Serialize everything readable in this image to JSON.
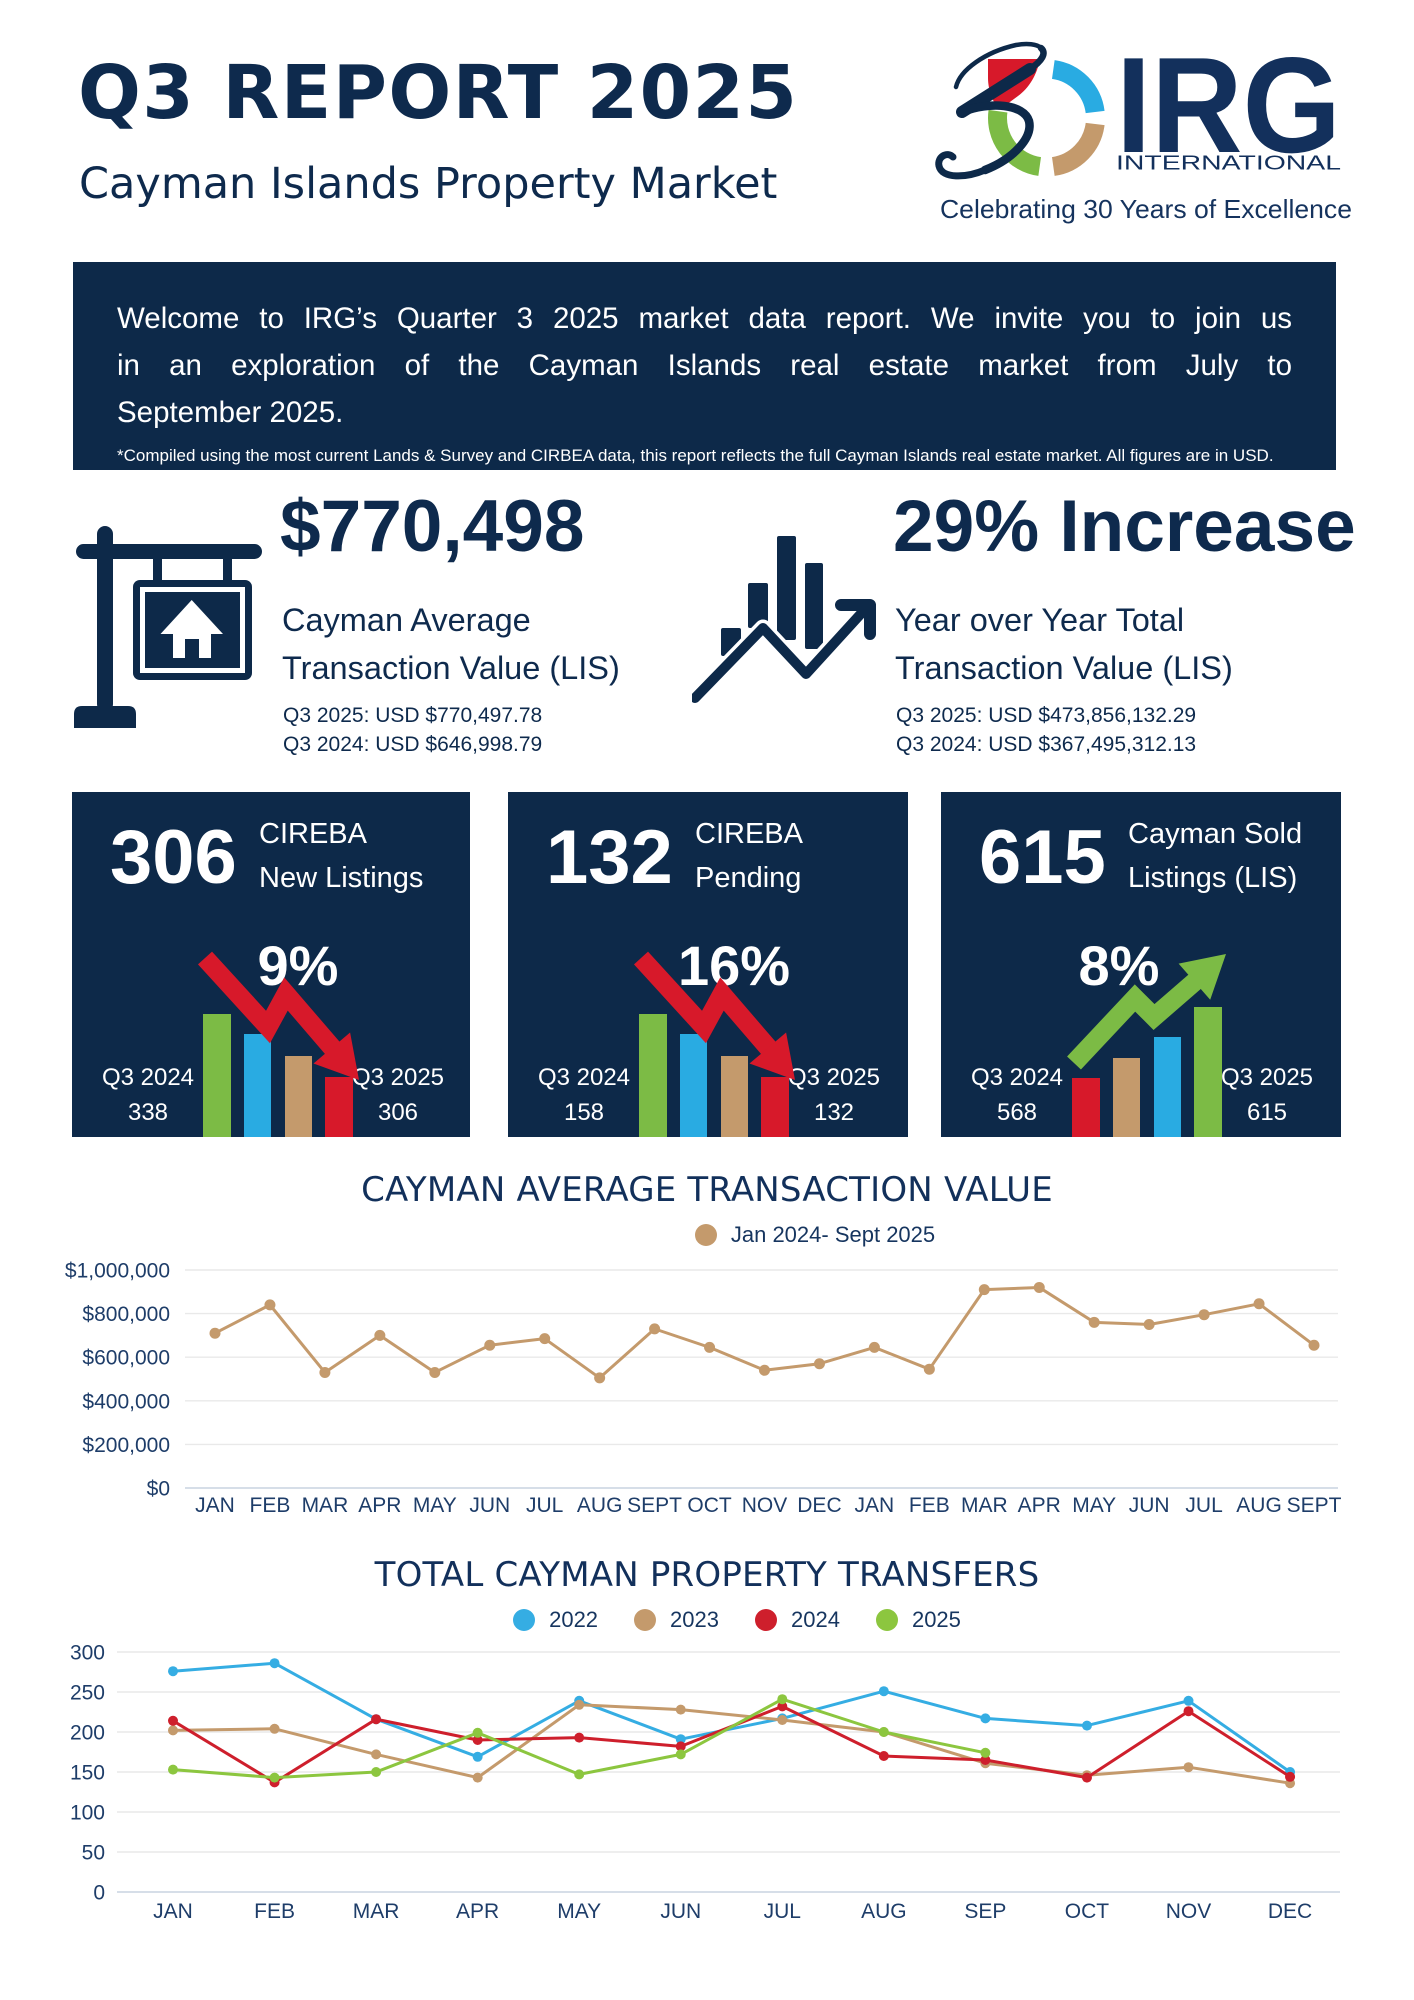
{
  "header": {
    "title": "Q3 REPORT 2025",
    "subtitle": "Cayman Islands Property Market"
  },
  "logo": {
    "mark_number": "30",
    "name": "IRG",
    "name_sub": "INTERNATIONAL",
    "tagline": "Celebrating 30 Years of Excellence"
  },
  "banner": {
    "lines": [
      "Welcome to IRG’s Quarter 3 2025 market data report. We invite you to join us",
      "in an exploration of the Cayman Islands real estate market from July to",
      "September 2025."
    ],
    "footnote": "*Compiled using the most current Lands & Survey and CIRBEA data, this report reflects the full Cayman Islands real estate market. All figures are in USD."
  },
  "stats": [
    {
      "icon": "for-sale-sign-icon",
      "value": "$770,498",
      "label_lines": [
        "Cayman Average",
        "Transaction Value (LIS)"
      ],
      "details": [
        "Q3 2025: USD $770,497.78",
        "Q3 2024: USD $646,998.79"
      ]
    },
    {
      "icon": "growth-chart-icon",
      "value": "29% Increase",
      "label_lines": [
        "Year over Year Total",
        "Transaction Value (LIS)"
      ],
      "details": [
        "Q3 2025: USD $473,856,132.29",
        "Q3 2024: USD $367,495,312.13"
      ]
    }
  ],
  "cards": [
    {
      "number": "306",
      "label_lines": [
        "CIREBA",
        "New Listings"
      ],
      "percent": "9%",
      "trend": "down",
      "left_period": "Q3 2024",
      "left_value": "338",
      "right_period": "Q3 2025",
      "right_value": "306"
    },
    {
      "number": "132",
      "label_lines": [
        "CIREBA",
        "Pending"
      ],
      "percent": "16%",
      "trend": "down",
      "left_period": "Q3 2024",
      "left_value": "158",
      "right_period": "Q3 2025",
      "right_value": "132"
    },
    {
      "number": "615",
      "label_lines": [
        "Cayman Sold",
        "Listings (LIS)"
      ],
      "percent": "8%",
      "trend": "up",
      "left_period": "Q3 2024",
      "left_value": "568",
      "right_period": "Q3 2025",
      "right_value": "615"
    }
  ],
  "chart_data": [
    {
      "type": "line",
      "title": "CAYMAN AVERAGE TRANSACTION VALUE",
      "legend": [
        {
          "label": "Jan 2024- Sept 2025",
          "color": "#C49A6C"
        }
      ],
      "categories": [
        "JAN",
        "FEB",
        "MAR",
        "APR",
        "MAY",
        "JUN",
        "JUL",
        "AUG",
        "SEPT",
        "OCT",
        "NOV",
        "DEC",
        "JAN",
        "FEB",
        "MAR",
        "APR",
        "MAY",
        "JUN",
        "JUL",
        "AUG",
        "SEPT"
      ],
      "series": [
        {
          "name": "Jan 2024- Sept 2025",
          "color": "#C49A6C",
          "values": [
            710000,
            840000,
            530000,
            700000,
            530000,
            655000,
            685000,
            505000,
            730000,
            645000,
            540000,
            570000,
            645000,
            545000,
            910000,
            920000,
            760000,
            750000,
            795000,
            845000,
            655000
          ]
        }
      ],
      "ylim": [
        0,
        1000000
      ],
      "ystep": 200000,
      "ytick_labels": [
        "$0",
        "$200,000",
        "$400,000",
        "$600,000",
        "$800,000",
        "$1,000,000"
      ],
      "grid": true,
      "legend_position": "top"
    },
    {
      "type": "line",
      "title": "TOTAL CAYMAN PROPERTY TRANSFERS",
      "legend": [
        {
          "label": "2022",
          "color": "#35ADE3"
        },
        {
          "label": "2023",
          "color": "#C49A6C"
        },
        {
          "label": "2024",
          "color": "#CE1F2C"
        },
        {
          "label": "2025",
          "color": "#8CC63F"
        }
      ],
      "categories": [
        "JAN",
        "FEB",
        "MAR",
        "APR",
        "MAY",
        "JUN",
        "JUL",
        "AUG",
        "SEP",
        "OCT",
        "NOV",
        "DEC"
      ],
      "series": [
        {
          "name": "2022",
          "color": "#35ADE3",
          "values": [
            276,
            286,
            216,
            169,
            239,
            191,
            217,
            251,
            217,
            208,
            239,
            150
          ]
        },
        {
          "name": "2023",
          "color": "#C49A6C",
          "values": [
            202,
            204,
            172,
            143,
            234,
            228,
            215,
            200,
            161,
            146,
            156,
            136
          ]
        },
        {
          "name": "2024",
          "color": "#CE1F2C",
          "values": [
            214,
            137,
            216,
            190,
            193,
            182,
            232,
            170,
            165,
            143,
            226,
            144
          ]
        },
        {
          "name": "2025",
          "color": "#8CC63F",
          "values": [
            153,
            143,
            150,
            199,
            147,
            172,
            241,
            200,
            174,
            null,
            null,
            null
          ]
        }
      ],
      "ylim": [
        0,
        300
      ],
      "ystep": 50,
      "ytick_labels": [
        "0",
        "50",
        "100",
        "150",
        "200",
        "250",
        "300"
      ],
      "grid": true,
      "legend_position": "top"
    }
  ],
  "colors": {
    "navy": "#0D2949",
    "red": "#D7192A",
    "blue": "#29ABE2",
    "tan": "#C49A6C",
    "green": "#7CBB45",
    "gridline": "#E9E9E9",
    "axis_line": "#C9D4E0",
    "tick_text": "#1E3D69"
  }
}
